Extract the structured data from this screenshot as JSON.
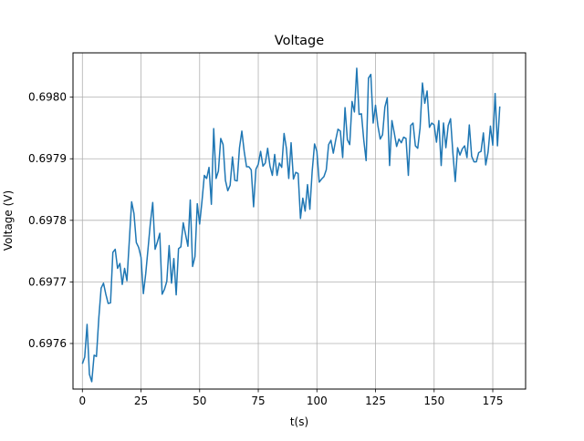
{
  "chart_data": {
    "type": "line",
    "title": "Voltage",
    "xlabel": "t(s)",
    "ylabel": "Voltage (V)",
    "xlim": [
      -4,
      189
    ],
    "ylim": [
      0.697526,
      0.698072
    ],
    "grid": true,
    "x_ticks": [
      0,
      25,
      50,
      75,
      100,
      125,
      150,
      175
    ],
    "y_ticks": [
      0.6976,
      0.6977,
      0.6978,
      0.6979,
      0.698
    ],
    "y_tick_labels": [
      "0.6976",
      "0.6977",
      "0.6978",
      "0.6979",
      "0.6980"
    ],
    "series": [
      {
        "color": "#1f77b4",
        "x_start": 0,
        "x_step": 1,
        "values": [
          0.697567,
          0.697578,
          0.697631,
          0.69755,
          0.697538,
          0.697581,
          0.697579,
          0.697641,
          0.69769,
          0.697698,
          0.69768,
          0.697665,
          0.697666,
          0.697748,
          0.697753,
          0.697722,
          0.69773,
          0.697696,
          0.697722,
          0.697702,
          0.697766,
          0.69783,
          0.697811,
          0.697764,
          0.697756,
          0.69774,
          0.697681,
          0.697713,
          0.697754,
          0.697796,
          0.697829,
          0.697753,
          0.697765,
          0.697779,
          0.69768,
          0.697688,
          0.697701,
          0.697759,
          0.697698,
          0.697738,
          0.697679,
          0.697754,
          0.697757,
          0.697796,
          0.697777,
          0.697758,
          0.697833,
          0.697725,
          0.697741,
          0.697827,
          0.697794,
          0.697831,
          0.697873,
          0.697868,
          0.697886,
          0.697826,
          0.697949,
          0.697868,
          0.69788,
          0.697933,
          0.697923,
          0.697865,
          0.697848,
          0.697857,
          0.697903,
          0.697865,
          0.697864,
          0.697918,
          0.697945,
          0.697912,
          0.697887,
          0.697887,
          0.697882,
          0.697822,
          0.697883,
          0.697891,
          0.697912,
          0.697888,
          0.697893,
          0.697917,
          0.697888,
          0.697873,
          0.697907,
          0.697873,
          0.697893,
          0.697886,
          0.697941,
          0.697917,
          0.697868,
          0.697926,
          0.697867,
          0.697878,
          0.697876,
          0.697803,
          0.697836,
          0.697815,
          0.697858,
          0.697818,
          0.69788,
          0.697924,
          0.697912,
          0.697862,
          0.697867,
          0.697871,
          0.697882,
          0.697923,
          0.69793,
          0.697909,
          0.69793,
          0.697948,
          0.697945,
          0.697902,
          0.697983,
          0.697931,
          0.697923,
          0.697993,
          0.697976,
          0.698047,
          0.697972,
          0.697973,
          0.69793,
          0.697897,
          0.698031,
          0.698037,
          0.697958,
          0.697987,
          0.697954,
          0.697932,
          0.697939,
          0.697984,
          0.697999,
          0.697889,
          0.697962,
          0.697942,
          0.69792,
          0.697932,
          0.697926,
          0.697935,
          0.697933,
          0.697873,
          0.697954,
          0.697958,
          0.697921,
          0.697917,
          0.69795,
          0.698023,
          0.69799,
          0.69801,
          0.697951,
          0.697958,
          0.697955,
          0.697927,
          0.697962,
          0.697889,
          0.697958,
          0.697918,
          0.697954,
          0.697965,
          0.697909,
          0.697863,
          0.697918,
          0.697906,
          0.697916,
          0.697921,
          0.697902,
          0.697955,
          0.697904,
          0.697895,
          0.697895,
          0.69791,
          0.697912,
          0.697942,
          0.69789,
          0.697911,
          0.697953,
          0.697922,
          0.698006,
          0.697921,
          0.697985
        ]
      }
    ]
  }
}
